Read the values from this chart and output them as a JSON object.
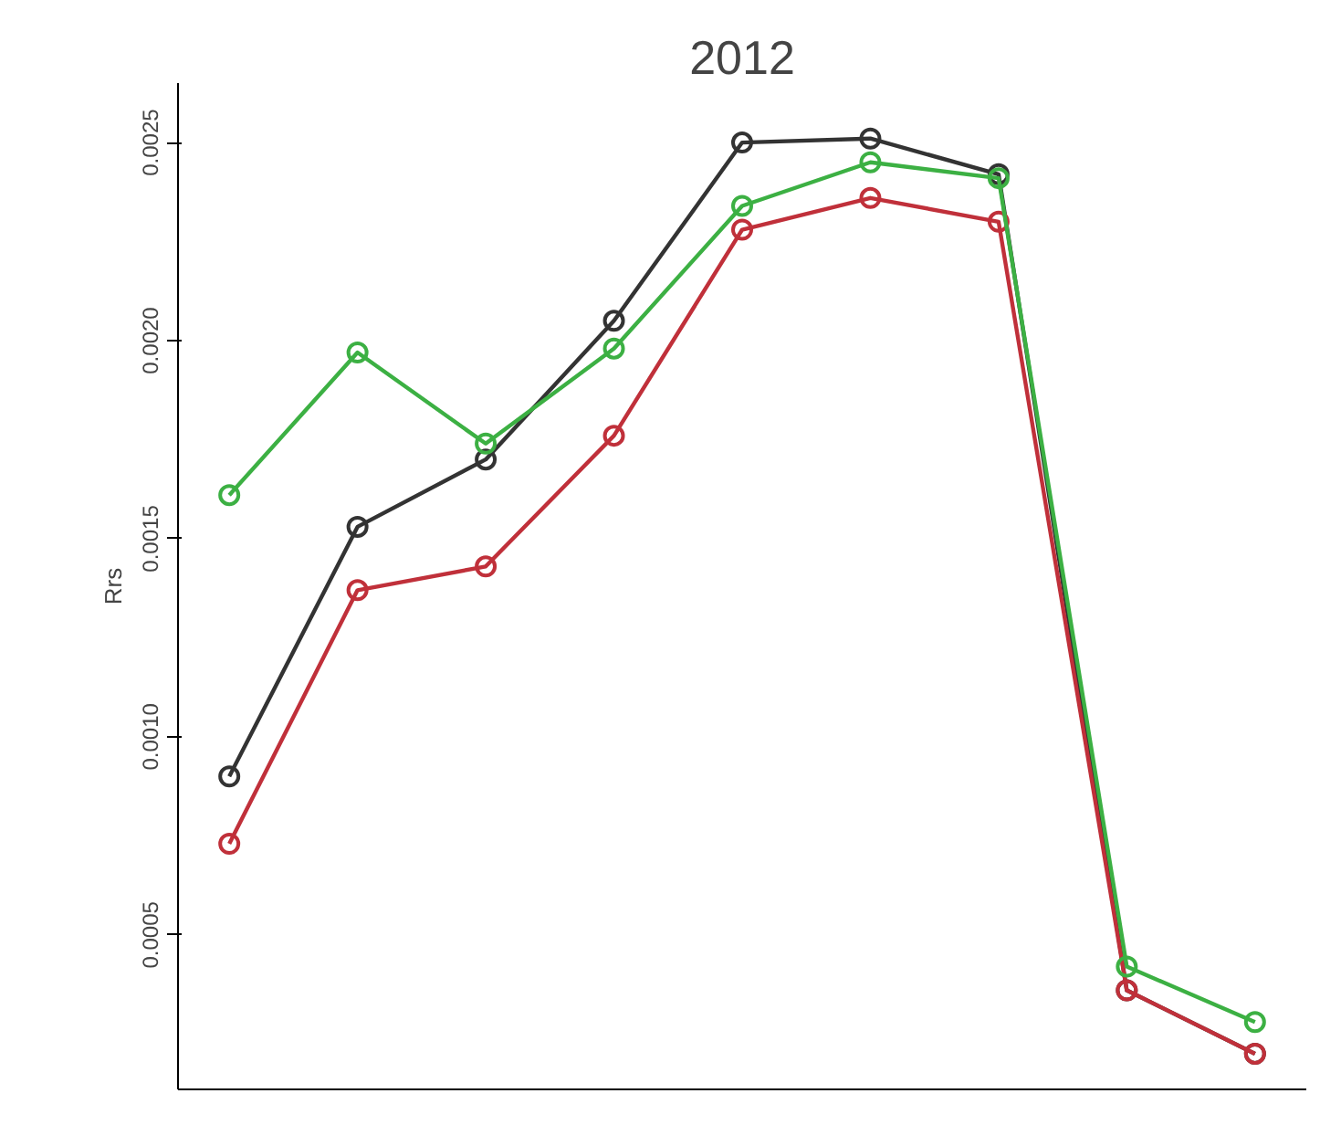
{
  "chart_data": {
    "type": "line",
    "title": "2012",
    "ylabel": "Rrs",
    "categories": [
      null,
      null,
      null,
      null,
      null,
      null,
      null,
      null,
      null
    ],
    "ylim": [
      0.00011,
      0.00265
    ],
    "yticks": [
      0.0005,
      {
        "value": 0.001,
        "label": "0.0010"
      },
      0.0015,
      {
        "value": 0.002,
        "label": "0.0020"
      },
      0.0025
    ],
    "marker": "circle",
    "line_style": "solid",
    "grid": false,
    "series": [
      {
        "color": "#333333",
        "values": [
          0.0009,
          0.00153,
          0.0017,
          0.00205,
          0.0025,
          0.00251,
          0.00242,
          0.00036,
          0.0002
        ]
      },
      {
        "color": "#c0303a",
        "values": [
          0.00073,
          0.00137,
          0.00143,
          0.00176,
          0.00228,
          0.00236,
          0.0023,
          0.00036,
          0.0002
        ]
      },
      {
        "color": "#3cb043",
        "values": [
          0.00161,
          0.00197,
          0.00174,
          0.00198,
          0.00234,
          0.00245,
          0.00241,
          0.00042,
          0.00028
        ]
      }
    ]
  }
}
